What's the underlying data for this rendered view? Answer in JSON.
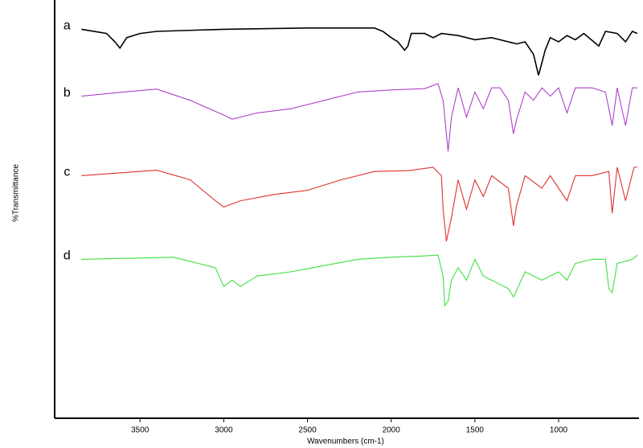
{
  "chart_data": {
    "type": "line",
    "x_label": "Wavenumbers (cm-1)",
    "y_label": "%Transmittance",
    "xlim": [
      4010,
      520
    ],
    "ylim": [
      0,
      100
    ],
    "xticks": [
      3500,
      3000,
      2500,
      2000,
      1500,
      1000
    ],
    "series": [
      {
        "name": "a",
        "color": "#000000",
        "x": [
          3850,
          3700,
          3650,
          3620,
          3580,
          3500,
          3400,
          3000,
          2500,
          2100,
          2050,
          2000,
          1960,
          1920,
          1900,
          1880,
          1800,
          1750,
          1700,
          1600,
          1500,
          1400,
          1300,
          1250,
          1200,
          1150,
          1120,
          1100,
          1080,
          1050,
          1000,
          950,
          900,
          850,
          760,
          720,
          650,
          600,
          560,
          530
        ],
        "values": [
          93,
          92,
          90,
          88.5,
          91,
          92,
          92.5,
          93,
          93.3,
          93.3,
          92.5,
          91,
          90,
          88,
          89,
          92,
          92,
          91,
          92,
          91.5,
          90.5,
          91,
          90,
          89.5,
          90,
          87,
          82,
          85,
          88,
          91,
          90,
          91.5,
          90.5,
          92,
          89,
          92.5,
          92,
          90,
          92.5,
          92
        ]
      },
      {
        "name": "b",
        "color": "#b040c8",
        "x": [
          3850,
          3600,
          3400,
          3200,
          3000,
          2950,
          2800,
          2600,
          2400,
          2200,
          2000,
          1800,
          1720,
          1690,
          1670,
          1660,
          1640,
          1600,
          1550,
          1500,
          1450,
          1400,
          1350,
          1300,
          1270,
          1250,
          1200,
          1150,
          1100,
          1050,
          1000,
          950,
          900,
          800,
          720,
          680,
          650,
          600,
          560,
          530
        ],
        "values": [
          77,
          78,
          78.7,
          76,
          72.5,
          71.5,
          73,
          74,
          76,
          78,
          78.5,
          78.8,
          80,
          76,
          68,
          63.8,
          72,
          79,
          72,
          78,
          74,
          79,
          79,
          76,
          68,
          71.5,
          78,
          76,
          79,
          77,
          79,
          73,
          79,
          79,
          78,
          70,
          79,
          70,
          79,
          79
        ]
      },
      {
        "name": "c",
        "color": "#e03030",
        "x": [
          3850,
          3400,
          3200,
          3050,
          3000,
          2900,
          2700,
          2500,
          2300,
          2100,
          1900,
          1750,
          1700,
          1690,
          1670,
          1640,
          1600,
          1550,
          1500,
          1450,
          1400,
          1300,
          1270,
          1250,
          1200,
          1100,
          1050,
          950,
          900,
          800,
          700,
          680,
          650,
          600,
          550,
          530
        ],
        "values": [
          58,
          59.3,
          57,
          52,
          50.5,
          52,
          53.5,
          54.5,
          57,
          59,
          59.2,
          60,
          58,
          50,
          42.3,
          48,
          57,
          50,
          57,
          53,
          58,
          55,
          46,
          51,
          58,
          55,
          58,
          52,
          58,
          58,
          59,
          49,
          60,
          52,
          60,
          60
        ]
      },
      {
        "name": "d",
        "color": "#40e040",
        "x": [
          3850,
          3500,
          3300,
          3050,
          3000,
          2950,
          2900,
          2800,
          2600,
          2400,
          2200,
          2000,
          1800,
          1720,
          1690,
          1680,
          1660,
          1640,
          1600,
          1550,
          1500,
          1450,
          1300,
          1270,
          1200,
          1100,
          1000,
          950,
          900,
          800,
          720,
          700,
          680,
          650,
          560,
          530
        ],
        "values": [
          38,
          38.3,
          38.5,
          36,
          31.5,
          33,
          31.5,
          34,
          35,
          36.5,
          38,
          38.5,
          38.8,
          39,
          34,
          26.9,
          28,
          33,
          36,
          33,
          38,
          34,
          31,
          29,
          35,
          33,
          35,
          33,
          37,
          38,
          38,
          31,
          30,
          37,
          38,
          39
        ]
      }
    ]
  }
}
